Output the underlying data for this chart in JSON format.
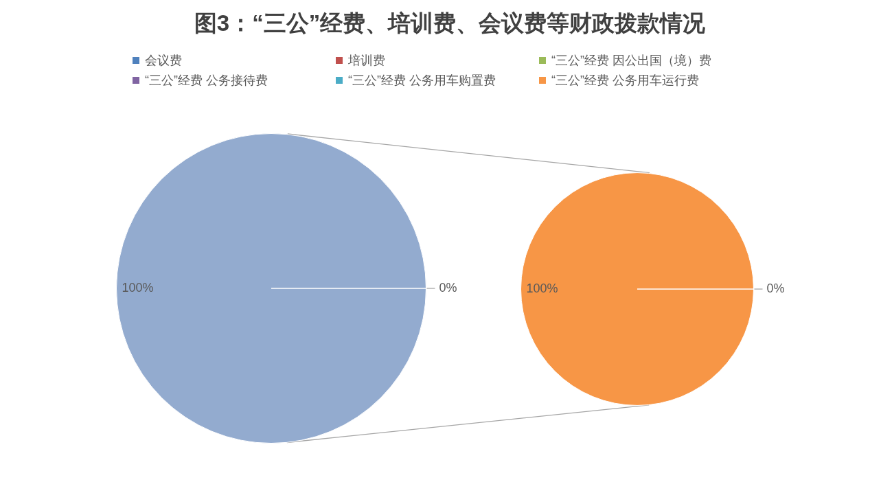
{
  "chart_data": [
    {
      "type": "pie",
      "title": "图3：“三公”经费、培训费、会议费等财政拨款情况",
      "categories": [
        "会议费",
        "培训费",
        "“三公”经费 因公出国（境）费",
        "“三公”经费 公务接待费",
        null
      ],
      "values": [
        0,
        0,
        0,
        0,
        100
      ],
      "colors": [
        "#4f81bd",
        "#c0504d",
        "#9bbb59",
        "#8064a2",
        "#93abcf"
      ],
      "value_labels": [
        "0%",
        null,
        null,
        null,
        "100%"
      ],
      "legend": "top"
    },
    {
      "type": "pie",
      "categories": [
        "“三公”经费 公务用车购置费",
        "“三公”经费 公务用车运行费"
      ],
      "values": [
        0,
        100
      ],
      "colors": [
        "#4bacc6",
        "#f79646"
      ],
      "value_labels": [
        "0%",
        "100%"
      ],
      "legend": "top"
    }
  ]
}
